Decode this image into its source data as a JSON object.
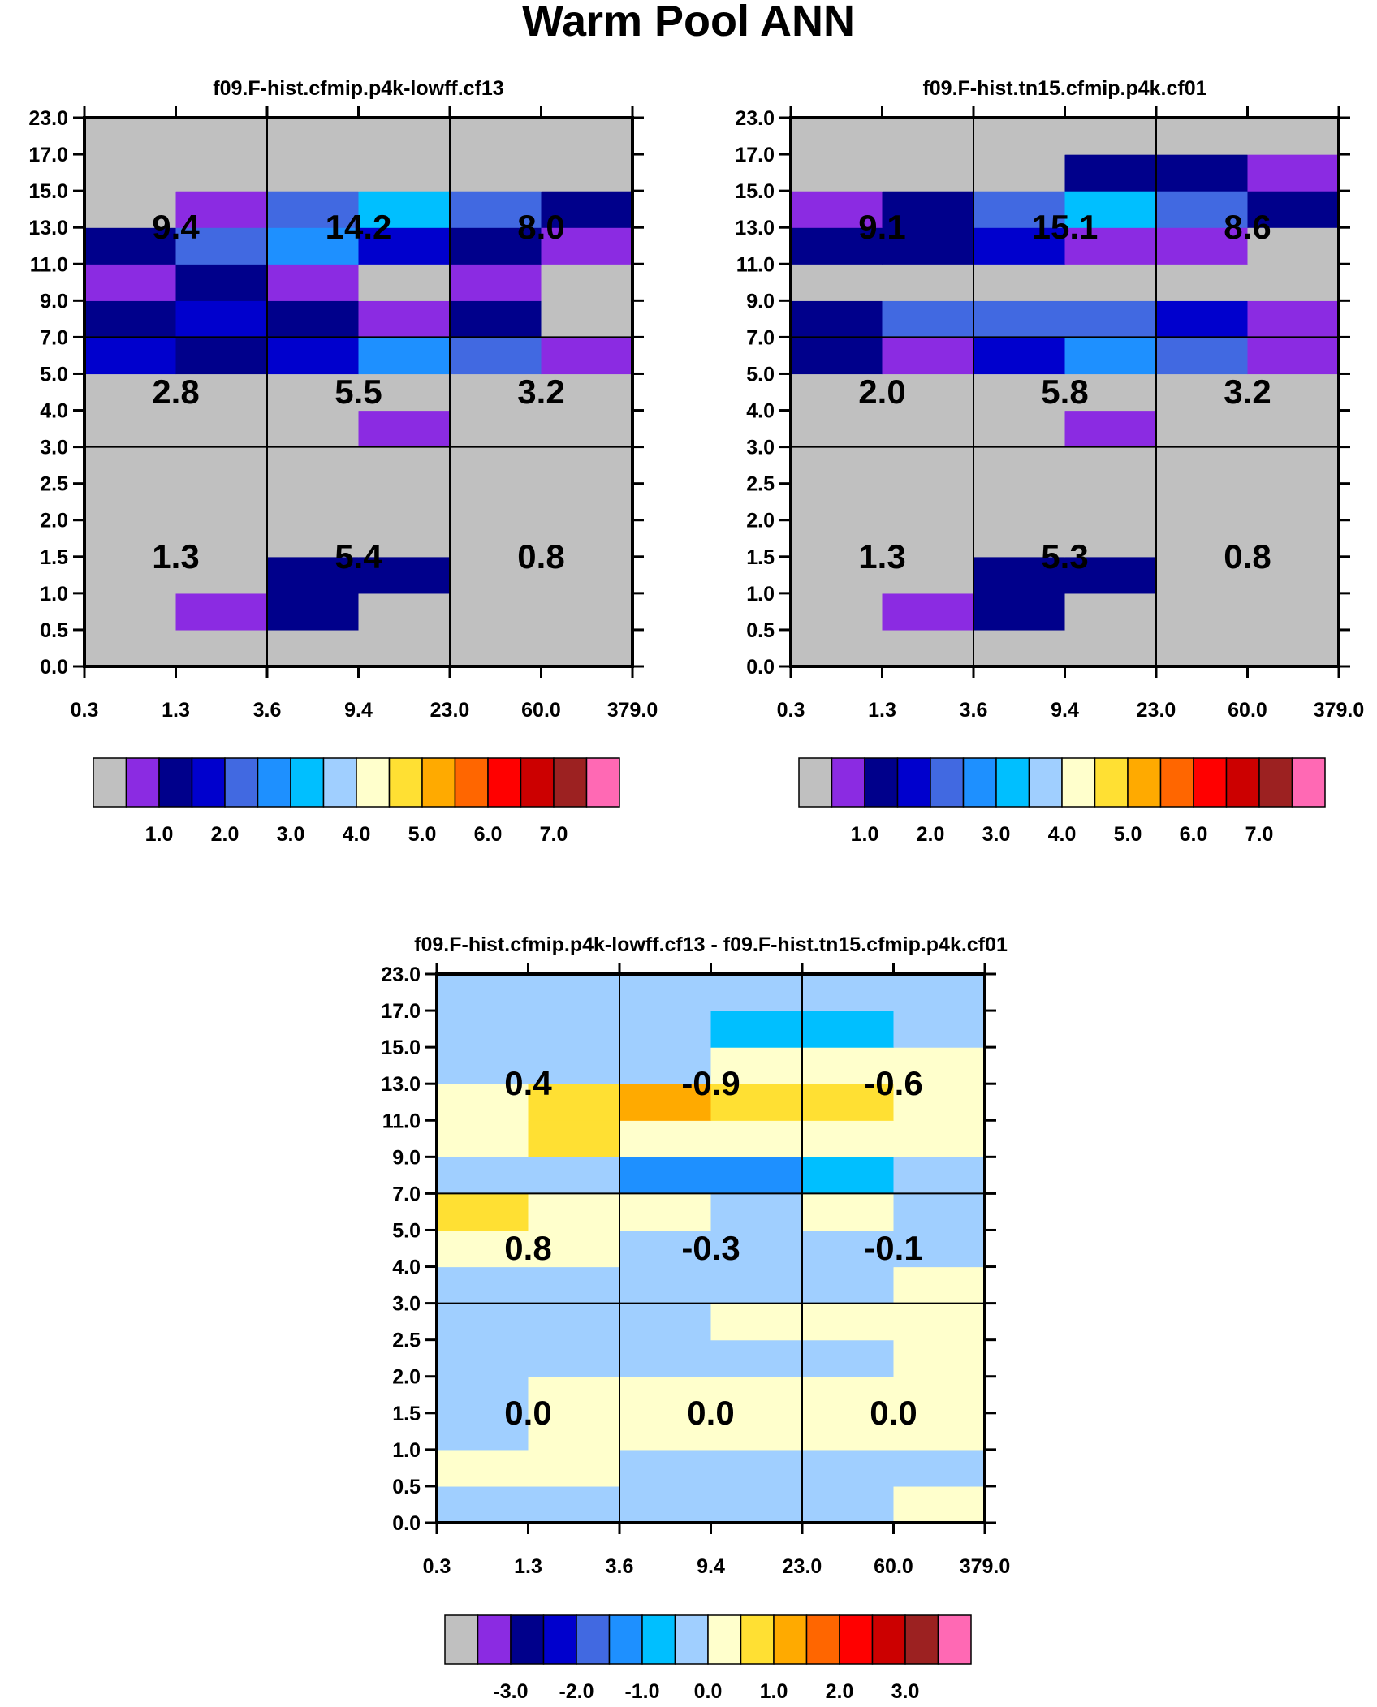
{
  "page_title": "Warm Pool ANN",
  "colors": {
    "abs_palette": [
      "#c0c0c0",
      "#8b2be2",
      "#00008b",
      "#0000cd",
      "#4169e1",
      "#1e90ff",
      "#00bfff",
      "#a0cfff",
      "#ffffcc",
      "#ffe033",
      "#ffaa00",
      "#ff6600",
      "#ff0000",
      "#cc0000",
      "#9c2121",
      "#ff69b4"
    ],
    "diff_palette": [
      "#c0c0c0",
      "#8b2be2",
      "#00008b",
      "#0000cd",
      "#4169e1",
      "#1e90ff",
      "#00bfff",
      "#a0cfff",
      "#ffffcc",
      "#ffe033",
      "#ffaa00",
      "#ff6600",
      "#ff0000",
      "#cc0000",
      "#9c2121",
      "#ff69b4"
    ]
  },
  "chart_data": [
    {
      "type": "heatmap",
      "title": "f09.F-hist.cfmip.p4k-lowff.cf13",
      "x_ticks": [
        "0.3",
        "1.3",
        "3.6",
        "9.4",
        "23.0",
        "60.0",
        "379.0"
      ],
      "y_ticks": [
        "0.0",
        "0.5",
        "1.0",
        "1.5",
        "2.0",
        "2.5",
        "3.0",
        "4.0",
        "5.0",
        "7.0",
        "9.0",
        "11.0",
        "13.0",
        "15.0",
        "17.0",
        "23.0"
      ],
      "cells_bottom_to_top": [
        [
          0,
          0,
          0,
          0,
          0,
          0
        ],
        [
          0,
          1,
          2,
          0,
          0,
          0
        ],
        [
          0,
          0,
          2,
          2,
          0,
          0
        ],
        [
          0,
          0,
          0,
          0,
          0,
          0
        ],
        [
          0,
          0,
          0,
          0,
          0,
          0
        ],
        [
          0,
          0,
          0,
          0,
          0,
          0
        ],
        [
          0,
          0,
          0,
          1,
          0,
          0
        ],
        [
          0,
          0,
          0,
          0,
          0,
          0
        ],
        [
          3,
          2,
          3,
          5,
          4,
          1
        ],
        [
          2,
          3,
          2,
          1,
          2,
          0
        ],
        [
          1,
          2,
          1,
          0,
          1,
          0
        ],
        [
          2,
          4,
          5,
          3,
          2,
          1
        ],
        [
          0,
          1,
          4,
          6,
          4,
          2
        ],
        [
          0,
          0,
          0,
          0,
          0,
          0
        ],
        [
          0,
          0,
          0,
          0,
          0,
          0
        ]
      ],
      "group_totals": [
        {
          "label": "1.3",
          "col": 0,
          "row": 0
        },
        {
          "label": "5.4",
          "col": 1,
          "row": 0
        },
        {
          "label": "0.8",
          "col": 2,
          "row": 0
        },
        {
          "label": "2.8",
          "col": 0,
          "row": 1
        },
        {
          "label": "5.5",
          "col": 1,
          "row": 1
        },
        {
          "label": "3.2",
          "col": 2,
          "row": 1
        },
        {
          "label": "9.4",
          "col": 0,
          "row": 2
        },
        {
          "label": "14.2",
          "col": 1,
          "row": 2
        },
        {
          "label": "8.0",
          "col": 2,
          "row": 2
        }
      ],
      "colorbar_labels": [
        "1.0",
        "2.0",
        "3.0",
        "4.0",
        "5.0",
        "6.0",
        "7.0"
      ]
    },
    {
      "type": "heatmap",
      "title": "f09.F-hist.tn15.cfmip.p4k.cf01",
      "x_ticks": [
        "0.3",
        "1.3",
        "3.6",
        "9.4",
        "23.0",
        "60.0",
        "379.0"
      ],
      "y_ticks": [
        "0.0",
        "0.5",
        "1.0",
        "1.5",
        "2.0",
        "2.5",
        "3.0",
        "4.0",
        "5.0",
        "7.0",
        "9.0",
        "11.0",
        "13.0",
        "15.0",
        "17.0",
        "23.0"
      ],
      "cells_bottom_to_top": [
        [
          0,
          0,
          0,
          0,
          0,
          0
        ],
        [
          0,
          1,
          2,
          0,
          0,
          0
        ],
        [
          0,
          0,
          2,
          2,
          0,
          0
        ],
        [
          0,
          0,
          0,
          0,
          0,
          0
        ],
        [
          0,
          0,
          0,
          0,
          0,
          0
        ],
        [
          0,
          0,
          0,
          0,
          0,
          0
        ],
        [
          0,
          0,
          0,
          1,
          0,
          0
        ],
        [
          0,
          0,
          0,
          0,
          0,
          0
        ],
        [
          2,
          1,
          3,
          5,
          4,
          1
        ],
        [
          2,
          4,
          4,
          4,
          3,
          1
        ],
        [
          0,
          0,
          0,
          0,
          0,
          0
        ],
        [
          2,
          2,
          3,
          1,
          1,
          0
        ],
        [
          1,
          2,
          4,
          6,
          4,
          2
        ],
        [
          0,
          0,
          0,
          2,
          2,
          1
        ],
        [
          0,
          0,
          0,
          0,
          0,
          0
        ]
      ],
      "group_totals": [
        {
          "label": "1.3",
          "col": 0,
          "row": 0
        },
        {
          "label": "5.3",
          "col": 1,
          "row": 0
        },
        {
          "label": "0.8",
          "col": 2,
          "row": 0
        },
        {
          "label": "2.0",
          "col": 0,
          "row": 1
        },
        {
          "label": "5.8",
          "col": 1,
          "row": 1
        },
        {
          "label": "3.2",
          "col": 2,
          "row": 1
        },
        {
          "label": "9.1",
          "col": 0,
          "row": 2
        },
        {
          "label": "15.1",
          "col": 1,
          "row": 2
        },
        {
          "label": "8.6",
          "col": 2,
          "row": 2
        }
      ],
      "colorbar_labels": [
        "1.0",
        "2.0",
        "3.0",
        "4.0",
        "5.0",
        "6.0",
        "7.0"
      ]
    },
    {
      "type": "heatmap",
      "title": "f09.F-hist.cfmip.p4k-lowff.cf13 - f09.F-hist.tn15.cfmip.p4k.cf01",
      "x_ticks": [
        "0.3",
        "1.3",
        "3.6",
        "9.4",
        "23.0",
        "60.0",
        "379.0"
      ],
      "y_ticks": [
        "0.0",
        "0.5",
        "1.0",
        "1.5",
        "2.0",
        "2.5",
        "3.0",
        "4.0",
        "5.0",
        "7.0",
        "9.0",
        "11.0",
        "13.0",
        "15.0",
        "17.0",
        "23.0"
      ],
      "cells_bottom_to_top": [
        [
          7,
          7,
          7,
          7,
          7,
          8
        ],
        [
          8,
          8,
          7,
          7,
          7,
          7
        ],
        [
          7,
          8,
          8,
          8,
          8,
          8
        ],
        [
          7,
          8,
          8,
          8,
          8,
          8
        ],
        [
          7,
          7,
          7,
          7,
          7,
          8
        ],
        [
          7,
          7,
          7,
          8,
          8,
          8
        ],
        [
          7,
          7,
          7,
          7,
          7,
          8
        ],
        [
          8,
          8,
          7,
          7,
          7,
          7
        ],
        [
          9,
          8,
          8,
          7,
          8,
          7
        ],
        [
          7,
          7,
          5,
          5,
          6,
          7
        ],
        [
          8,
          9,
          8,
          8,
          8,
          8
        ],
        [
          8,
          9,
          10,
          9,
          9,
          8
        ],
        [
          7,
          7,
          7,
          8,
          8,
          8
        ],
        [
          7,
          7,
          7,
          6,
          6,
          7
        ],
        [
          7,
          7,
          7,
          7,
          7,
          7
        ]
      ],
      "group_totals": [
        {
          "label": "0.0",
          "col": 0,
          "row": 0
        },
        {
          "label": "0.0",
          "col": 1,
          "row": 0
        },
        {
          "label": "0.0",
          "col": 2,
          "row": 0
        },
        {
          "label": "0.8",
          "col": 0,
          "row": 1
        },
        {
          "label": "-0.3",
          "col": 1,
          "row": 1
        },
        {
          "label": "-0.1",
          "col": 2,
          "row": 1
        },
        {
          "label": "0.4",
          "col": 0,
          "row": 2
        },
        {
          "label": "-0.9",
          "col": 1,
          "row": 2
        },
        {
          "label": "-0.6",
          "col": 2,
          "row": 2
        }
      ],
      "colorbar_labels": [
        "-3.0",
        "-2.0",
        "-1.0",
        "0.0",
        "1.0",
        "2.0",
        "3.0"
      ]
    }
  ]
}
